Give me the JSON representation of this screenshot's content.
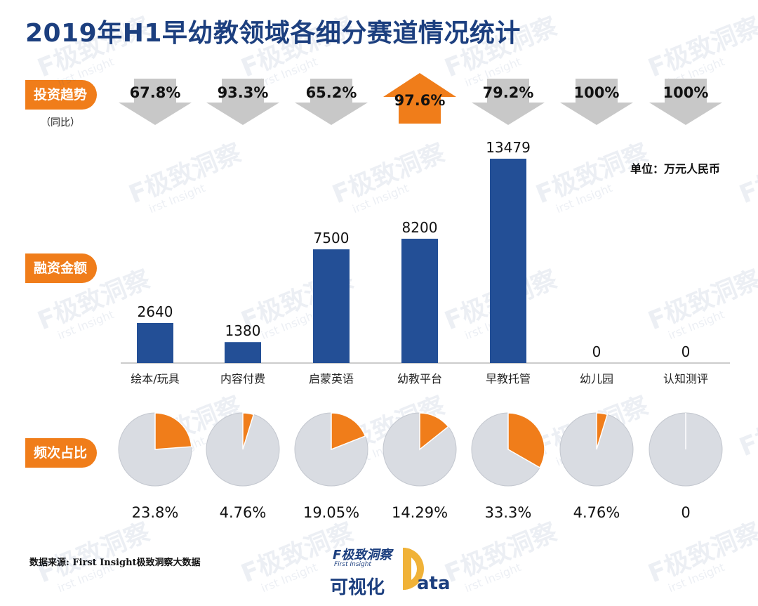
{
  "title": "2019年H1早幼教领域各细分赛道情况统计",
  "labels": {
    "trend": "投资趋势",
    "trend_sub": "（同比）",
    "amount": "融资金额",
    "freq": "频次占比"
  },
  "unit": "单位：万元人民币",
  "source": "数据来源: First Insight极致洞察大数据",
  "logo": {
    "brand": "F极致洞察",
    "brand_sub": "First Insight",
    "viz": "可视化",
    "ata": "ata"
  },
  "watermark": {
    "brand": "F极致洞察",
    "sub": "irst Insight"
  },
  "colors": {
    "title": "#1c3f7f",
    "bar": "#234f96",
    "accent": "#f07d1a",
    "arrow_down": "#c8c8c8",
    "pie_bg": "#d9dce2"
  },
  "chart_data": {
    "type": "bar",
    "categories": [
      "绘本/玩具",
      "内容付费",
      "启蒙英语",
      "幼教平台",
      "早教托管",
      "幼儿园",
      "认知测评"
    ],
    "values": [
      2640,
      1380,
      7500,
      8200,
      13479,
      0,
      0
    ],
    "value_labels": [
      "2640",
      "1380",
      "7500",
      "8200",
      "13479",
      "0",
      "0"
    ],
    "ylim": [
      0,
      13479
    ],
    "trend": {
      "labels": [
        "67.8%",
        "93.3%",
        "65.2%",
        "97.6%",
        "79.2%",
        "100%",
        "100%"
      ],
      "direction": [
        "down",
        "down",
        "down",
        "up",
        "down",
        "down",
        "down"
      ]
    },
    "frequency_share": {
      "values": [
        23.8,
        4.76,
        19.05,
        14.29,
        33.3,
        4.76,
        0
      ],
      "labels": [
        "23.8%",
        "4.76%",
        "19.05%",
        "14.29%",
        "33.3%",
        "4.76%",
        "0"
      ]
    }
  }
}
